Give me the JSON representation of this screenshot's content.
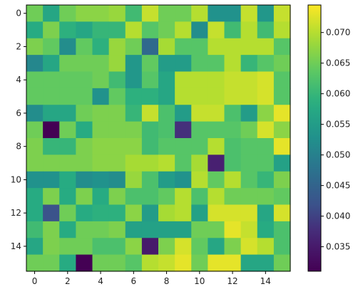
{
  "chart_data": {
    "type": "heatmap",
    "title": "",
    "xlabel": "",
    "ylabel": "",
    "rows": 16,
    "cols": 16,
    "x_ticks": [
      "0",
      "2",
      "4",
      "6",
      "8",
      "10",
      "12",
      "14"
    ],
    "y_ticks": [
      "0",
      "2",
      "4",
      "6",
      "8",
      "10",
      "12",
      "14"
    ],
    "colormap": "viridis",
    "vmin": 0.031,
    "vmax": 0.0745,
    "colorbar_ticks": [
      "0.035",
      "0.040",
      "0.045",
      "0.050",
      "0.055",
      "0.060",
      "0.065",
      "0.070"
    ],
    "values": [
      [
        0.065,
        0.057,
        0.065,
        0.067,
        0.067,
        0.068,
        0.061,
        0.071,
        0.065,
        0.065,
        0.07,
        0.053,
        0.053,
        0.071,
        0.054,
        0.071
      ],
      [
        0.058,
        0.066,
        0.059,
        0.057,
        0.06,
        0.06,
        0.07,
        0.063,
        0.065,
        0.07,
        0.052,
        0.071,
        0.061,
        0.07,
        0.061,
        0.07
      ],
      [
        0.066,
        0.064,
        0.052,
        0.064,
        0.059,
        0.068,
        0.065,
        0.046,
        0.069,
        0.063,
        0.063,
        0.07,
        0.07,
        0.07,
        0.07,
        0.063
      ],
      [
        0.051,
        0.057,
        0.065,
        0.065,
        0.065,
        0.068,
        0.054,
        0.064,
        0.055,
        0.055,
        0.063,
        0.063,
        0.07,
        0.06,
        0.063,
        0.065
      ],
      [
        0.064,
        0.064,
        0.064,
        0.064,
        0.065,
        0.061,
        0.054,
        0.063,
        0.057,
        0.07,
        0.07,
        0.07,
        0.071,
        0.071,
        0.072,
        0.063
      ],
      [
        0.064,
        0.064,
        0.064,
        0.064,
        0.053,
        0.064,
        0.059,
        0.059,
        0.057,
        0.07,
        0.07,
        0.07,
        0.071,
        0.071,
        0.072,
        0.063
      ],
      [
        0.052,
        0.057,
        0.057,
        0.065,
        0.066,
        0.066,
        0.06,
        0.071,
        0.062,
        0.055,
        0.071,
        0.071,
        0.062,
        0.055,
        0.067,
        0.073
      ],
      [
        0.065,
        0.031,
        0.065,
        0.058,
        0.066,
        0.066,
        0.066,
        0.061,
        0.062,
        0.038,
        0.063,
        0.063,
        0.063,
        0.065,
        0.072,
        0.067
      ],
      [
        0.066,
        0.06,
        0.06,
        0.066,
        0.067,
        0.067,
        0.067,
        0.061,
        0.063,
        0.063,
        0.063,
        0.07,
        0.062,
        0.063,
        0.063,
        0.073
      ],
      [
        0.066,
        0.066,
        0.066,
        0.066,
        0.067,
        0.067,
        0.069,
        0.069,
        0.07,
        0.063,
        0.069,
        0.036,
        0.062,
        0.063,
        0.063,
        0.056
      ],
      [
        0.053,
        0.053,
        0.058,
        0.052,
        0.053,
        0.052,
        0.068,
        0.062,
        0.055,
        0.053,
        0.07,
        0.064,
        0.07,
        0.063,
        0.06,
        0.066
      ],
      [
        0.058,
        0.066,
        0.058,
        0.066,
        0.058,
        0.066,
        0.062,
        0.062,
        0.064,
        0.07,
        0.062,
        0.07,
        0.065,
        0.065,
        0.065,
        0.064
      ],
      [
        0.058,
        0.042,
        0.065,
        0.058,
        0.059,
        0.059,
        0.067,
        0.055,
        0.069,
        0.07,
        0.056,
        0.072,
        0.072,
        0.072,
        0.057,
        0.072
      ],
      [
        0.061,
        0.066,
        0.058,
        0.065,
        0.065,
        0.066,
        0.056,
        0.056,
        0.056,
        0.056,
        0.065,
        0.065,
        0.073,
        0.071,
        0.058,
        0.062
      ],
      [
        0.057,
        0.066,
        0.065,
        0.065,
        0.062,
        0.062,
        0.067,
        0.035,
        0.066,
        0.072,
        0.064,
        0.057,
        0.066,
        0.072,
        0.07,
        0.062
      ],
      [
        0.065,
        0.065,
        0.058,
        0.031,
        0.065,
        0.065,
        0.063,
        0.07,
        0.071,
        0.073,
        0.065,
        0.073,
        0.073,
        0.057,
        0.057,
        0.065
      ]
    ]
  }
}
